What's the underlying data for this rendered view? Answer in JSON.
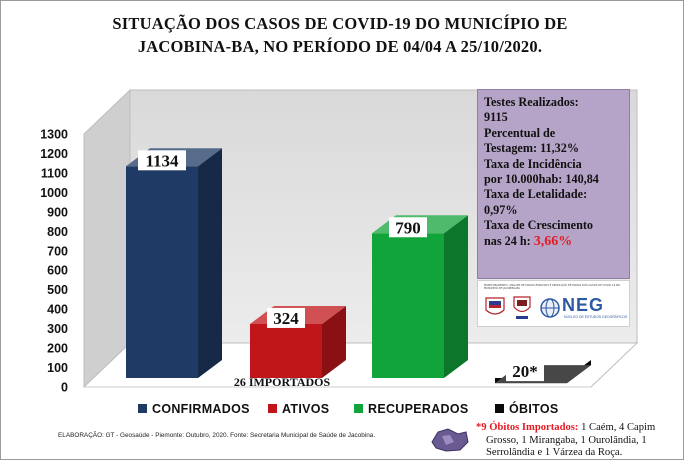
{
  "title": {
    "line1": "SITUAÇÃO DOS CASOS DE COVID-19 DO MUNICÍPIO DE",
    "line2": "JACOBINA-BA, NO PERÍODO DE  04/04 A 25/10/2020."
  },
  "chart_data": {
    "type": "bar",
    "title": "SITUAÇÃO DOS CASOS DE COVID-19 DO MUNICÍPIO DE JACOBINA-BA, NO PERÍODO DE  04/04 A 25/10/2020.",
    "categories": [
      "CONFIRMADOS",
      "ATIVOS",
      "RECUPERADOS",
      "ÓBITOS"
    ],
    "values": [
      1134,
      324,
      790,
      20
    ],
    "data_labels": [
      "1134",
      "324",
      "790",
      "20*"
    ],
    "colors": [
      "#1f3a64",
      "#c0161a",
      "#11a43a",
      "#0a0a0a"
    ],
    "ylim": [
      0,
      1300
    ],
    "yticks": [
      "0",
      "100",
      "200",
      "300",
      "400",
      "500",
      "600",
      "700",
      "800",
      "900",
      "1000",
      "1100",
      "1200",
      "1300"
    ],
    "legend_position": "bottom",
    "annotation": "26 IMPORTADOS",
    "grid": false
  },
  "info_box": {
    "lines": [
      "Testes Realizados:",
      "9115",
      "Percentual de",
      "Testagem:  11,32%",
      "Taxa de Incidência",
      "por 10.000hab: 140,84",
      "Taxa de Letalidade:",
      "0,97%",
      "Taxa de Crescimento"
    ],
    "last_prefix": "nas 24 h: ",
    "last_value": "3,66%"
  },
  "logos": {
    "small_text": "MONITORAMENTO, ANÁLISE DE DADOS ESPACIAIS E PRODUÇÃO DE MAPAS DOS CASOS DE COVID-19 NO MUNICÍPIO DE JACOBINA-BA",
    "neg": "NEG",
    "neg_sub": "NÚCLEO DE ESTUDOS GEOGRÁFICOS"
  },
  "footer": "ELABORAÇÃO: GT - Geosaúde - Piemonte: Outubro, 2020. Fonte: Secretaria Municipal de Saúde de Jacobina.",
  "obitos_note": {
    "prefix": "*9 Óbitos Importados: ",
    "text1": "1 Caém, 4 Capim",
    "text2": "Grosso, 1 Mirangaba, 1 Ourolândia, 1",
    "text3": "Serrolândia e 1 Várzea  da Roça."
  },
  "accent_colors": {
    "red": "#e31b23",
    "info_bg": "#b5a4c7"
  }
}
